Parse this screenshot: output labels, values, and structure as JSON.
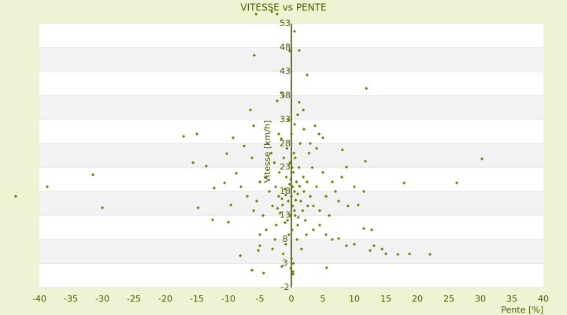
{
  "chart_data": {
    "type": "scatter",
    "title": "VITESSE vs PENTE",
    "x_label": "Pente [%]",
    "y_label": "Vitesse [km/h]",
    "color": "#6b7a00",
    "xlim": [
      -40,
      40
    ],
    "xticks": [
      -40,
      -35,
      -30,
      -25,
      -20,
      -15,
      -10,
      -5,
      0,
      5,
      10,
      15,
      20,
      25,
      30,
      35,
      40
    ],
    "ylim": [
      -2,
      53
    ],
    "yticks": [
      53,
      48,
      43,
      38,
      33,
      28,
      23,
      18,
      13,
      8,
      3,
      -2
    ],
    "x": [
      -43.75,
      -38.75,
      -31.5,
      -30,
      -17.1,
      -15,
      -15.6,
      -13.5,
      -14.8,
      -12.5,
      -12.25,
      -10,
      -9.25,
      -10.25,
      -8.75,
      -10.6,
      -9.6,
      -8.1,
      -5.9,
      -5.6,
      -3.1,
      -2.25,
      -6.25,
      -4.4,
      -5.25,
      -5,
      0.5,
      -0.25,
      1.25,
      2.5,
      11.9,
      30.25,
      26.25,
      17.9,
      11.5,
      10.6,
      8.1,
      8.75,
      11.75,
      12.75,
      11.5,
      12.5,
      13.1,
      14.4,
      15,
      16.9,
      18.75,
      22,
      7.5,
      8.75,
      10,
      5.6,
      0.25,
      0.25,
      -1.5,
      -1.25,
      -1.6,
      -2.25,
      1.25,
      1.9,
      3.75,
      4.4,
      5,
      -6.5,
      -6,
      -7.5,
      -6.25,
      0,
      0.5,
      -0.5,
      1,
      -1,
      0.2,
      -0.3,
      1.5,
      -1.5,
      0.8,
      -0.8,
      2,
      -2,
      0.3,
      -0.2,
      1.2,
      -1.2,
      2.5,
      -2.5,
      3,
      -3,
      0.6,
      -0.6,
      1.8,
      -1.8,
      0.1,
      -0.4,
      1,
      2.2,
      -2.4,
      3.5,
      -3.5,
      4,
      -4,
      4.5,
      -4.5,
      0.4,
      -0.7,
      1.4,
      -1.6,
      2.8,
      -2.7,
      3.3,
      -3.2,
      5,
      -5,
      5.5,
      -5.5,
      6,
      -6,
      6.5,
      7,
      7.5,
      8,
      9,
      10,
      -7,
      -8,
      0,
      0.5,
      -0.5,
      1,
      2,
      -2,
      3,
      4,
      -3.8,
      0.9,
      -0.9,
      1.6,
      -1.3,
      2.4,
      -2.6,
      0,
      0.3,
      -0.1,
      3.5,
      4.5,
      5.5,
      6.5,
      -4,
      -5,
      -3,
      0.2,
      -0.1,
      0.7,
      -0.9,
      1.3,
      -1.4,
      0.5,
      -0.2,
      1.9,
      -1.9,
      2.6,
      -2.2,
      0.1,
      0.6,
      -1,
      1.1
    ],
    "values": [
      17,
      19,
      21.5,
      14.6,
      29.5,
      30,
      24,
      23.3,
      14.6,
      12.1,
      18.7,
      11.6,
      29.2,
      25.9,
      21.8,
      19.8,
      15.2,
      4.6,
      46.4,
      55,
      55.5,
      55,
      1.6,
      1,
      5.7,
      6.7,
      51.4,
      47.3,
      47.4,
      42.3,
      39.5,
      24.8,
      19.8,
      19.8,
      18,
      15.2,
      26.7,
      23.1,
      24.3,
      10,
      10.3,
      5.7,
      6.7,
      6,
      5,
      4.9,
      5,
      4.9,
      8.2,
      6.7,
      7,
      2.1,
      1.3,
      0.8,
      2.4,
      37.9,
      38.6,
      36.9,
      36.6,
      35,
      31.7,
      30,
      29.2,
      35,
      31.7,
      27.5,
      25,
      17,
      18,
      16,
      17.5,
      18.5,
      15,
      19.5,
      16,
      16.5,
      20,
      21,
      18,
      17,
      22,
      24,
      23,
      25,
      20,
      19,
      17,
      15,
      13,
      12,
      14,
      13.5,
      10,
      9,
      11,
      12,
      11,
      15,
      18,
      19,
      21,
      14,
      13,
      26,
      27,
      28,
      29,
      26,
      24,
      23,
      26,
      22,
      20,
      17,
      16,
      13,
      14,
      20,
      18,
      16,
      21,
      15,
      19,
      17,
      19,
      30,
      32,
      33,
      34,
      31,
      30,
      28,
      27,
      28,
      8,
      7,
      6,
      5,
      9,
      8,
      4,
      3,
      2,
      10,
      11,
      9,
      8,
      10,
      9,
      6,
      19,
      20.5,
      16.2,
      17.3,
      19.1,
      15.2,
      14,
      13,
      21,
      22,
      15,
      14.5,
      23,
      25,
      11.5,
      12.6
    ]
  }
}
